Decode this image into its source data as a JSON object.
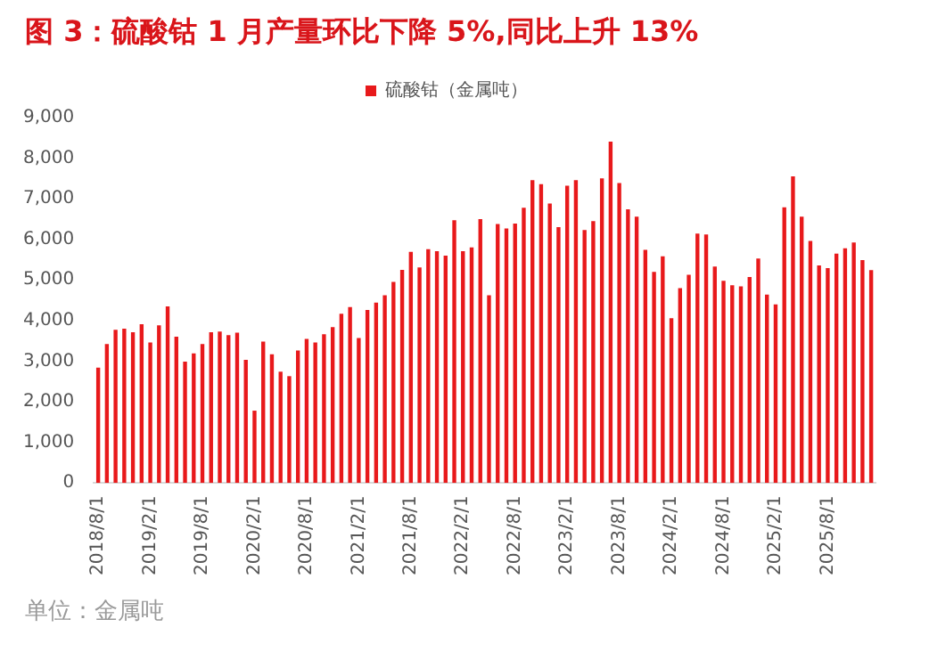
{
  "chart_data": {
    "type": "bar",
    "title": "图 3：硫酸钴 1 月产量环比下降 5%,同比上升 13%",
    "categories": [
      "2018/8/1",
      null,
      null,
      null,
      null,
      null,
      "2019/2/1",
      null,
      null,
      null,
      null,
      null,
      "2019/8/1",
      null,
      null,
      null,
      null,
      null,
      "2020/2/1",
      null,
      null,
      null,
      null,
      null,
      "2020/8/1",
      null,
      null,
      null,
      null,
      null,
      "2021/2/1",
      null,
      null,
      null,
      null,
      null,
      "2021/8/1",
      null,
      null,
      null,
      null,
      null,
      "2022/2/1",
      null,
      null,
      null,
      null,
      null,
      "2022/8/1",
      null,
      null,
      null,
      null,
      null,
      "2023/2/1",
      null,
      null,
      null,
      null,
      null,
      "2023/8/1",
      null,
      null,
      null,
      null,
      null,
      "2024/2/1",
      null,
      null,
      null,
      null,
      null,
      "2024/8/1",
      null,
      null,
      null,
      null,
      null,
      "2025/2/1",
      null,
      null,
      null,
      null,
      null,
      "2025/8/1",
      null,
      null,
      null,
      null,
      null
    ],
    "series": [
      {
        "name": "硫酸钴（金属吨）",
        "color": "#e8191b",
        "values": [
          2840,
          3420,
          3770,
          3800,
          3710,
          3910,
          3460,
          3880,
          4350,
          3600,
          2990,
          3190,
          3420,
          3710,
          3730,
          3640,
          3700,
          3030,
          1780,
          3480,
          3170,
          2740,
          2630,
          3260,
          3550,
          3460,
          3660,
          3840,
          4170,
          4330,
          3570,
          4260,
          4440,
          4620,
          4950,
          5250,
          5690,
          5310,
          5760,
          5710,
          5600,
          6470,
          5710,
          5800,
          6500,
          4620,
          6380,
          6270,
          6390,
          6780,
          7460,
          7360,
          6880,
          6300,
          7320,
          7460,
          6230,
          6450,
          7500,
          8410,
          7390,
          6740,
          6560,
          5740,
          5200,
          5580,
          4060,
          4800,
          5130,
          6140,
          6120,
          5330,
          4980,
          4870,
          4840,
          5070,
          5530,
          4640,
          4400,
          6790,
          7550,
          6560,
          5960,
          5360,
          5290,
          5650,
          5780,
          5920,
          5490,
          5240
        ]
      }
    ],
    "ylim": [
      0,
      9000
    ],
    "yticks": [
      0,
      {
        "value": 1000,
        "label": "1,000"
      },
      {
        "value": 2000,
        "label": "2,000"
      },
      {
        "value": 3000,
        "label": "3,000"
      },
      {
        "value": 4000,
        "label": "4,000"
      },
      {
        "value": 5000,
        "label": "5,000"
      },
      {
        "value": 6000,
        "label": "6,000"
      },
      {
        "value": 7000,
        "label": "7,000"
      },
      {
        "value": 8000,
        "label": "8,000"
      },
      {
        "value": 9000,
        "label": "9,000"
      }
    ],
    "grid": false,
    "legend": "top",
    "annotations": [
      "单位：金属吨"
    ]
  }
}
